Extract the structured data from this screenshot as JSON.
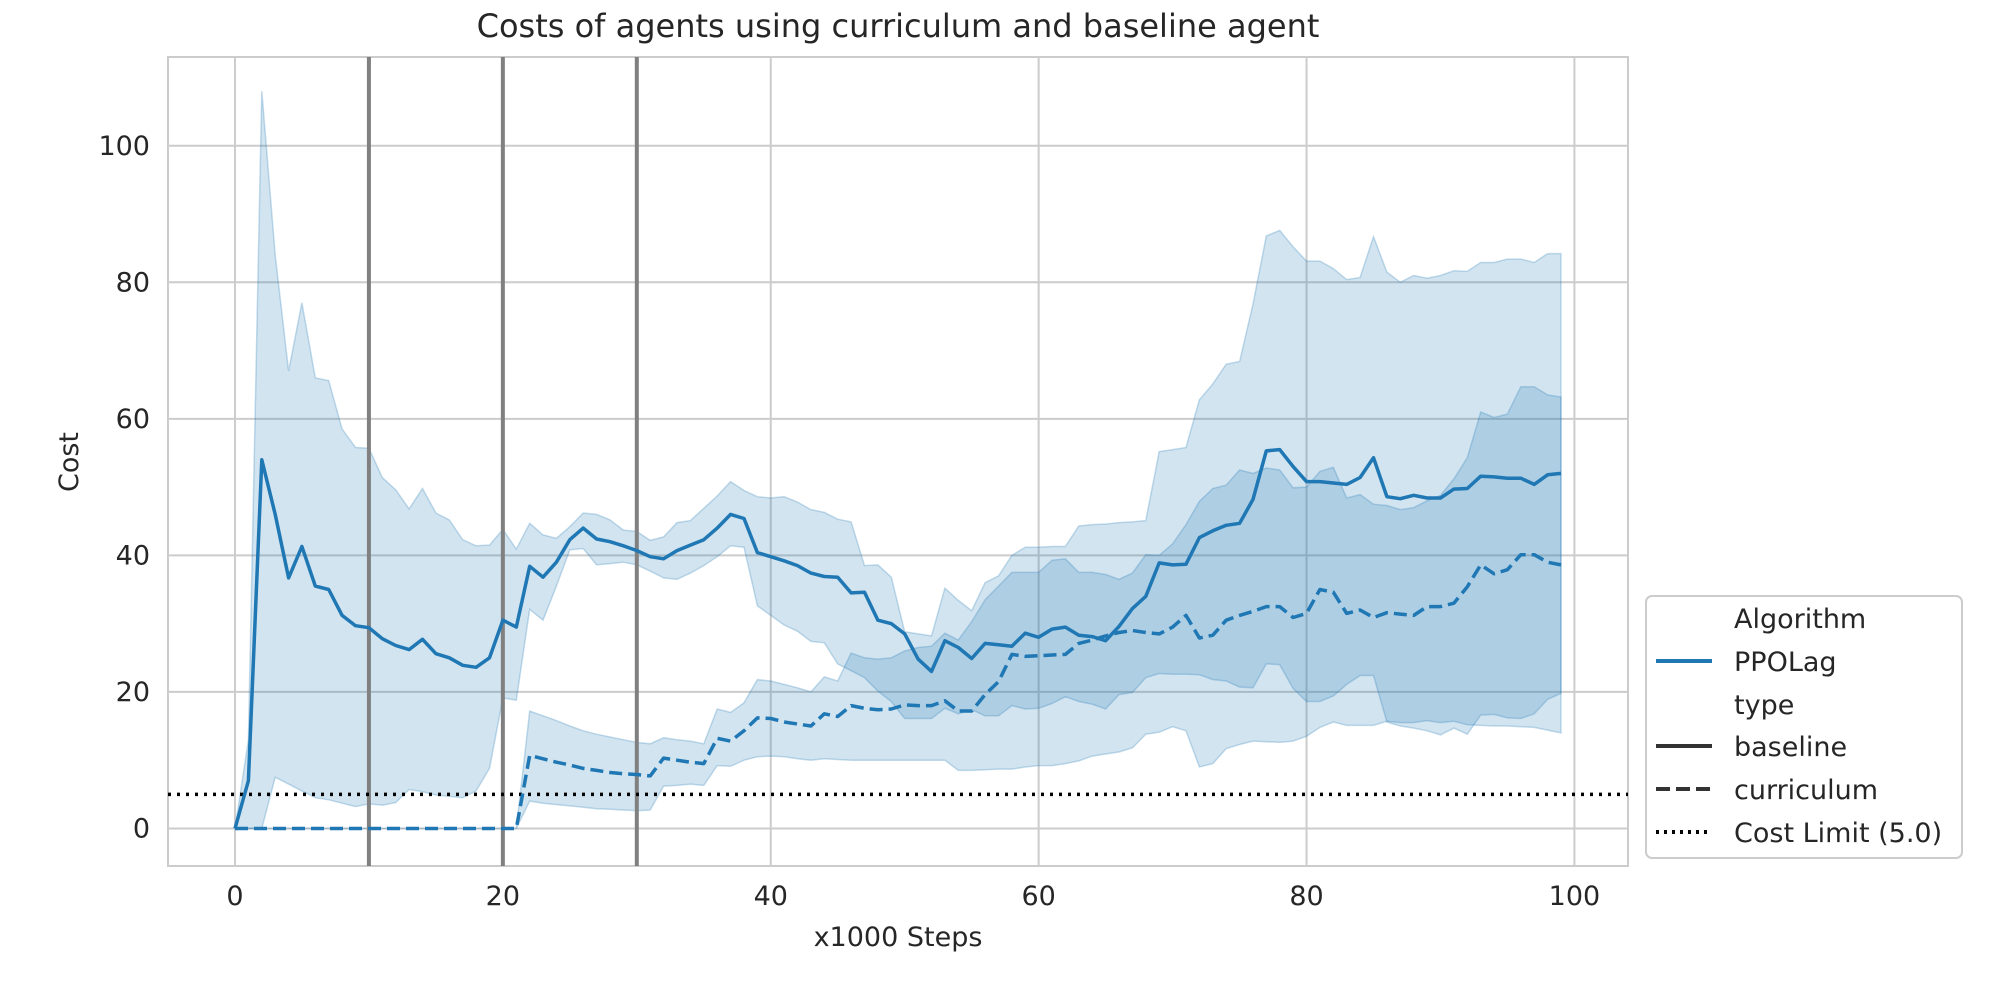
{
  "chart_data": {
    "type": "line",
    "title": "Costs of agents using curriculum and baseline agent",
    "xlabel": "x1000 Steps",
    "ylabel": "Cost",
    "xlim": [
      -5,
      104
    ],
    "ylim": [
      -5.5,
      113
    ],
    "xticks": [
      0,
      20,
      40,
      60,
      80,
      100
    ],
    "yticks": [
      0,
      20,
      40,
      60,
      80,
      100
    ],
    "grid": true,
    "legend_position": "bottom-right",
    "legend": {
      "title_algorithm": "Algorithm",
      "algorithm_entry": "PPOLag",
      "title_type": "type",
      "entries": [
        "baseline",
        "curriculum",
        "Cost Limit (5.0)"
      ]
    },
    "colors": {
      "series": "#1f77b4",
      "band": "#1f77b4",
      "vline": "#808080",
      "limit": "#000000",
      "grid": "#cccccc",
      "text": "#262626"
    },
    "vlines": [
      10,
      20,
      30
    ],
    "cost_limit": 5.0,
    "series": [
      {
        "name": "baseline",
        "style": "solid",
        "x": [
          0,
          1,
          2,
          3,
          4,
          5,
          6,
          7,
          8,
          9,
          10,
          11,
          12,
          13,
          14,
          15,
          16,
          17,
          18,
          19,
          20,
          21,
          22,
          23,
          24,
          25,
          26,
          27,
          28,
          29,
          30,
          31,
          32,
          33,
          34,
          35,
          36,
          37,
          38,
          39,
          40,
          41,
          42,
          43,
          44,
          45,
          46,
          47,
          48,
          49,
          50,
          51,
          52,
          53,
          54,
          55,
          56,
          57,
          58,
          59,
          60,
          61,
          62,
          63,
          64,
          65,
          66,
          67,
          68,
          69,
          70,
          71,
          72,
          73,
          74,
          75,
          76,
          77,
          78,
          79,
          80,
          81,
          82,
          83,
          84,
          85,
          86,
          87,
          88,
          89,
          90,
          91,
          92,
          93,
          94,
          95,
          96,
          97,
          98,
          99
        ],
        "y": [
          0,
          7,
          54,
          46,
          36.7,
          41.3,
          35.5,
          35,
          31.2,
          29.7,
          29.4,
          27.8,
          26.8,
          26.2,
          27.7,
          25.6,
          25,
          23.9,
          23.6,
          25,
          30.5,
          29.5,
          38.4,
          36.8,
          39,
          42.3,
          44,
          42.4,
          42,
          41.4,
          40.7,
          39.8,
          39.5,
          40.7,
          41.5,
          42.3,
          44,
          46,
          45.4,
          40.4,
          39.8,
          39.2,
          38.5,
          37.4,
          36.9,
          36.8,
          34.5,
          34.6,
          30.5,
          30,
          28.5,
          24.8,
          23,
          27.5,
          26.5,
          24.9,
          27.1,
          26.9,
          26.7,
          28.6,
          28,
          29.2,
          29.5,
          28.3,
          28.1,
          27.5,
          29.6,
          32.2,
          34,
          38.9,
          38.6,
          38.7,
          42.6,
          43.6,
          44.4,
          44.7,
          48.2,
          55.3,
          55.5,
          53,
          50.8,
          50.8,
          50.6,
          50.4,
          51.4,
          54.3,
          48.6,
          48.3,
          48.8,
          48.4,
          48.4,
          49.7,
          49.8,
          51.6,
          51.5,
          51.3,
          51.3,
          50.4,
          51.8,
          52
        ]
      },
      {
        "name": "curriculum",
        "style": "dashed",
        "x": [
          0,
          1,
          2,
          3,
          4,
          5,
          6,
          7,
          8,
          9,
          10,
          11,
          12,
          13,
          14,
          15,
          16,
          17,
          18,
          19,
          20,
          21,
          22,
          23,
          24,
          25,
          26,
          27,
          28,
          29,
          30,
          31,
          32,
          33,
          34,
          35,
          36,
          37,
          38,
          39,
          40,
          41,
          42,
          43,
          44,
          45,
          46,
          47,
          48,
          49,
          50,
          51,
          52,
          53,
          54,
          55,
          56,
          57,
          58,
          59,
          60,
          61,
          62,
          63,
          64,
          65,
          66,
          67,
          68,
          69,
          70,
          71,
          72,
          73,
          74,
          75,
          76,
          77,
          78,
          79,
          80,
          81,
          82,
          83,
          84,
          85,
          86,
          87,
          88,
          89,
          90,
          91,
          92,
          93,
          94,
          95,
          96,
          97,
          98,
          99
        ],
        "y": [
          0,
          0,
          0,
          0,
          0,
          0,
          0,
          0,
          0,
          0,
          0,
          0,
          0,
          0,
          0,
          0,
          0,
          0,
          0,
          0,
          0,
          0,
          10.7,
          10.2,
          9.7,
          9.3,
          8.8,
          8.5,
          8.2,
          8,
          7.9,
          7.7,
          10.3,
          10,
          9.7,
          9.5,
          13.2,
          12.8,
          14.3,
          16.2,
          16.1,
          15.6,
          15.3,
          15,
          16.8,
          16.4,
          18,
          17.6,
          17.4,
          17.5,
          18.1,
          18,
          18,
          18.7,
          17.2,
          17.2,
          19.6,
          21.5,
          25.5,
          25.2,
          25.3,
          25.4,
          25.5,
          27.1,
          27.6,
          28.2,
          28.7,
          29,
          28.7,
          28.5,
          29.5,
          31.2,
          27.9,
          28.3,
          30.5,
          31.2,
          31.8,
          32.5,
          32.5,
          30.9,
          31.5,
          35,
          34.6,
          31.5,
          32,
          30.9,
          31.6,
          31.4,
          31.2,
          32.5,
          32.5,
          33,
          35.4,
          38.6,
          37.3,
          37.9,
          40.1,
          40.1,
          39,
          38.6
        ]
      }
    ],
    "bands": [
      {
        "name": "baseline-ci",
        "x": [
          0,
          1,
          2,
          3,
          4,
          5,
          6,
          7,
          8,
          9,
          10,
          11,
          12,
          13,
          14,
          15,
          16,
          17,
          18,
          19,
          20,
          21,
          22,
          23,
          24,
          25,
          26,
          27,
          28,
          29,
          30,
          31,
          32,
          33,
          34,
          35,
          36,
          37,
          38,
          39,
          40,
          41,
          42,
          43,
          44,
          45,
          46,
          47,
          48,
          49,
          50,
          51,
          52,
          53,
          54,
          55,
          56,
          57,
          58,
          59,
          60,
          61,
          62,
          63,
          64,
          65,
          66,
          67,
          68,
          69,
          70,
          71,
          72,
          73,
          74,
          75,
          76,
          77,
          78,
          79,
          80,
          81,
          82,
          83,
          84,
          85,
          86,
          87,
          88,
          89,
          90,
          91,
          92,
          93,
          94,
          95,
          96,
          97,
          98,
          99
        ],
        "lower": [
          0,
          0,
          0,
          7.5,
          6.5,
          5.5,
          4.5,
          4.2,
          3.7,
          3.2,
          3.6,
          3.4,
          3.8,
          5.7,
          5.4,
          4.9,
          4.7,
          4.5,
          5.5,
          8.8,
          19.1,
          18.8,
          32.1,
          30.5,
          35.5,
          40.8,
          41,
          38.6,
          38.8,
          39,
          38.6,
          37.7,
          36.7,
          36.5,
          37.4,
          38.5,
          39.8,
          41.4,
          41.2,
          32.6,
          31.2,
          29.8,
          28.9,
          27.4,
          27.2,
          24.1,
          23.1,
          22.1,
          20.1,
          18.6,
          16.1,
          16.1,
          16.1,
          17.6,
          16.8,
          17.4,
          16.5,
          16.5,
          18,
          17.5,
          17.6,
          18.3,
          19.3,
          18.6,
          18.2,
          17.5,
          19.6,
          19.9,
          22.1,
          22.7,
          22.6,
          22.6,
          22.5,
          21.8,
          21.6,
          20.7,
          20.6,
          24.1,
          24,
          20.5,
          18.6,
          18.6,
          19.4,
          21.1,
          22.4,
          22.4,
          15.6,
          15,
          14.7,
          14.3,
          13.7,
          14.7,
          13.8,
          16.6,
          16.7,
          16.2,
          16.1,
          16.8,
          18.9,
          19.8
        ],
        "upper": [
          0,
          13,
          108,
          84,
          67,
          77,
          66,
          65.6,
          58.5,
          55.8,
          55.7,
          51.4,
          49.6,
          46.8,
          49.8,
          46.2,
          45.2,
          42.3,
          41.4,
          41.5,
          43.8,
          40.9,
          44.7,
          43,
          42.5,
          44.2,
          46.2,
          46,
          45.2,
          43.7,
          43.5,
          42.2,
          42.7,
          44.8,
          45.1,
          46.9,
          48.7,
          50.8,
          49.5,
          48.6,
          48.4,
          48.6,
          47.8,
          46.7,
          46.3,
          45.3,
          44.9,
          38.5,
          38.6,
          36.8,
          28.8,
          28.5,
          28.2,
          35.2,
          33.4,
          31.9,
          36,
          37,
          40,
          41.2,
          41.2,
          41.3,
          41.3,
          44.3,
          44.5,
          44.6,
          44.8,
          44.9,
          45.1,
          55.2,
          55.5,
          55.8,
          62.8,
          65.1,
          68,
          68.4,
          76.8,
          86.8,
          87.6,
          85.2,
          83.1,
          83.1,
          82,
          80.4,
          80.7,
          86.7,
          81.5,
          80,
          81,
          80.6,
          81,
          81.7,
          81.6,
          82.9,
          82.9,
          83.4,
          83.4,
          82.9,
          84.2,
          84.2
        ]
      },
      {
        "name": "curriculum-ci",
        "x": [
          0,
          1,
          2,
          3,
          4,
          5,
          6,
          7,
          8,
          9,
          10,
          11,
          12,
          13,
          14,
          15,
          16,
          17,
          18,
          19,
          20,
          21,
          22,
          23,
          24,
          25,
          26,
          27,
          28,
          29,
          30,
          31,
          32,
          33,
          34,
          35,
          36,
          37,
          38,
          39,
          40,
          41,
          42,
          43,
          44,
          45,
          46,
          47,
          48,
          49,
          50,
          51,
          52,
          53,
          54,
          55,
          56,
          57,
          58,
          59,
          60,
          61,
          62,
          63,
          64,
          65,
          66,
          67,
          68,
          69,
          70,
          71,
          72,
          73,
          74,
          75,
          76,
          77,
          78,
          79,
          80,
          81,
          82,
          83,
          84,
          85,
          86,
          87,
          88,
          89,
          90,
          91,
          92,
          93,
          94,
          95,
          96,
          97,
          98,
          99
        ],
        "lower": [
          0,
          0,
          0,
          0,
          0,
          0,
          0,
          0,
          0,
          0,
          0,
          0,
          0,
          0,
          0,
          0,
          0,
          0,
          0,
          0,
          0,
          0,
          4,
          3.7,
          3.5,
          3.3,
          3.1,
          2.9,
          2.8,
          2.7,
          2.6,
          2.7,
          6.2,
          6.3,
          6.5,
          6.3,
          9.2,
          9.1,
          10,
          10.5,
          10.6,
          10.5,
          10.2,
          10,
          10.2,
          10.1,
          10,
          10,
          10,
          10,
          10,
          10,
          10,
          10,
          8.5,
          8.5,
          8.6,
          8.7,
          8.7,
          9,
          9.2,
          9.2,
          9.5,
          9.9,
          10.6,
          10.9,
          11.2,
          11.8,
          13.8,
          14.1,
          14.9,
          14.3,
          9,
          9.5,
          11.7,
          12.3,
          12.8,
          12.7,
          12.6,
          12.8,
          13.5,
          14.8,
          15.6,
          15.1,
          15.1,
          15.1,
          15.7,
          15.5,
          15.5,
          15.8,
          15.5,
          15.7,
          15.2,
          15.1,
          15,
          15,
          14.9,
          14.8,
          14.4,
          14
        ],
        "upper": [
          0,
          0,
          0,
          0,
          0,
          0,
          0,
          0,
          0,
          0,
          0,
          0,
          0,
          0,
          0,
          0,
          0,
          0,
          0,
          0,
          0,
          0,
          17.2,
          16.5,
          15.8,
          15,
          14.3,
          13.8,
          13.4,
          13,
          12.6,
          12.4,
          13.3,
          13,
          12.8,
          12.4,
          17.5,
          17,
          18.4,
          21.8,
          21.6,
          21.1,
          20.6,
          20,
          22.2,
          21.6,
          25.7,
          25,
          24.8,
          25,
          26,
          26.5,
          26.7,
          28.6,
          27.6,
          30.3,
          33.5,
          35.5,
          37.5,
          37.5,
          37.5,
          39.3,
          39.5,
          37.5,
          37.5,
          37.2,
          36.5,
          37.4,
          40.1,
          40,
          41.7,
          44.5,
          47.9,
          49.8,
          50.3,
          52.5,
          52,
          52.8,
          52.5,
          49.9,
          50,
          52.3,
          52.9,
          48.4,
          48.9,
          47.5,
          47.3,
          46.7,
          47,
          48,
          48.8,
          51.2,
          54.3,
          61,
          60.2,
          60.7,
          64.7,
          64.7,
          63.5,
          63.2
        ]
      }
    ]
  }
}
